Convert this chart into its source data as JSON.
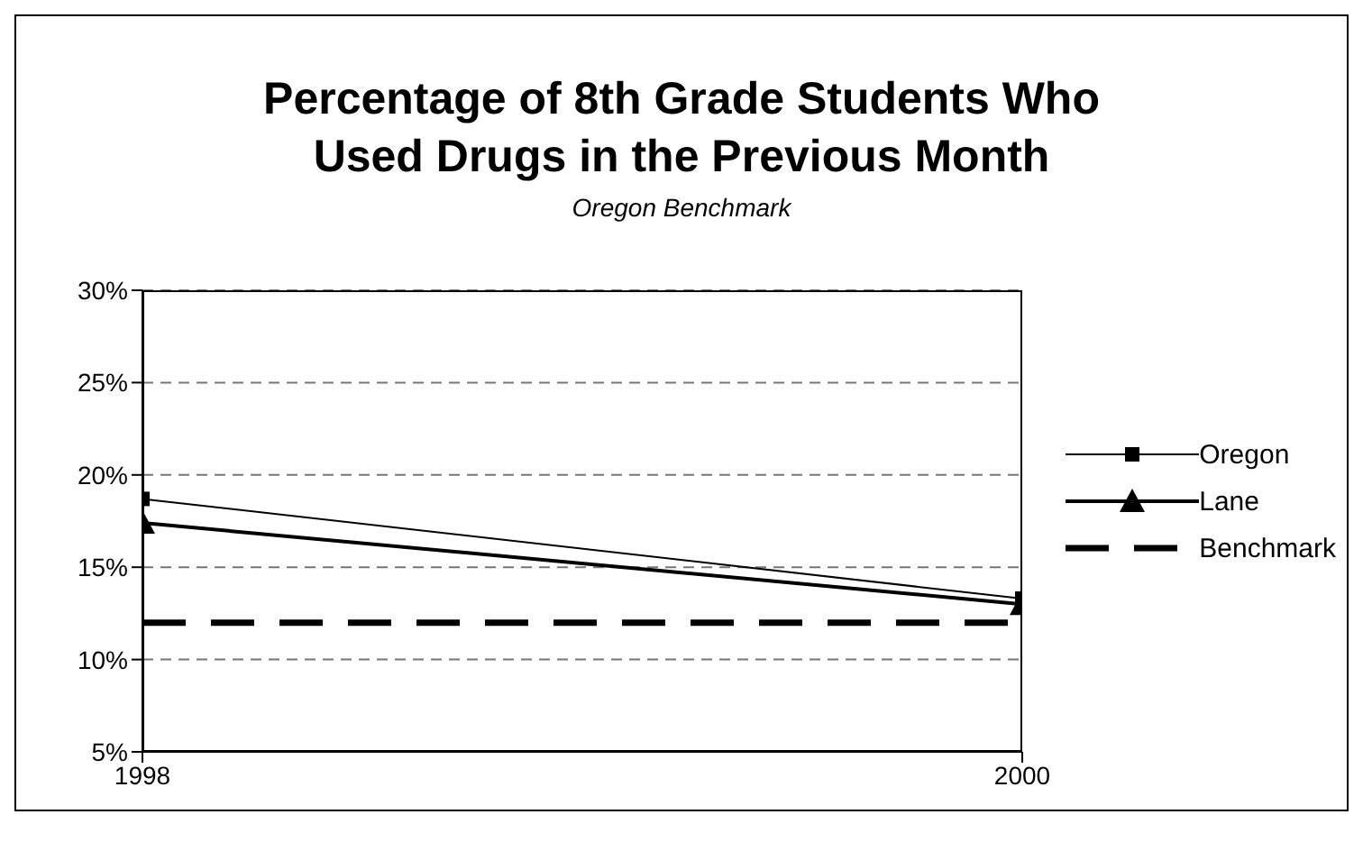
{
  "chart_data": {
    "type": "line",
    "title": "Percentage of 8th Grade Students Who Used Drugs in the Previous Month",
    "subtitle": "Oregon Benchmark",
    "x": [
      1998,
      2000
    ],
    "series": [
      {
        "name": "Oregon",
        "color": "#000000",
        "values": [
          18.7,
          13.3
        ],
        "marker": "square",
        "line_style": "solid"
      },
      {
        "name": "Lane",
        "color": "#000000",
        "values": [
          17.4,
          13.0
        ],
        "marker": "triangle",
        "line_style": "solid"
      },
      {
        "name": "Benchmark",
        "color": "#000000",
        "values": [
          12,
          12
        ],
        "marker": "none",
        "line_style": "dashed"
      }
    ],
    "xlim": [
      1998,
      2000
    ],
    "xticks": [
      1998,
      2000
    ],
    "ylim": [
      5,
      30
    ],
    "yticks": [
      {
        "value": 5,
        "label": "5%"
      },
      {
        "value": 10,
        "label": "10%"
      },
      {
        "value": 15,
        "label": "15%"
      },
      {
        "value": 20,
        "label": "20%"
      },
      {
        "value": 25,
        "label": "25%"
      },
      {
        "value": 30,
        "label": "30%"
      }
    ],
    "grid": "y",
    "legend": "right"
  }
}
